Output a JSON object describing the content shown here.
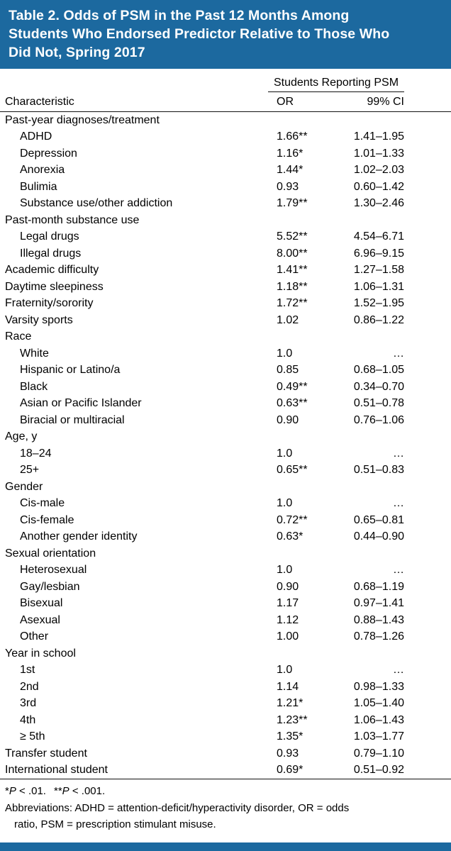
{
  "colors": {
    "header_bg": "#1c699f",
    "rule": "#111111",
    "text": "#000000"
  },
  "title_lines": [
    "Table 2. Odds of PSM in the Past 12 Months Among",
    "Students Who Endorsed Predictor Relative to Those Who",
    "Did Not, Spring 2017"
  ],
  "header": {
    "span": "Students Reporting PSM",
    "characteristic": "Characteristic",
    "or": "OR",
    "ci": "99% CI"
  },
  "rows": [
    {
      "label": "Past-year diagnoses/treatment",
      "indent": 0,
      "or": "",
      "ci": ""
    },
    {
      "label": "ADHD",
      "indent": 1,
      "or": "1.66**",
      "ci": "1.41–1.95"
    },
    {
      "label": "Depression",
      "indent": 1,
      "or": "1.16*",
      "ci": "1.01–1.33"
    },
    {
      "label": "Anorexia",
      "indent": 1,
      "or": "1.44*",
      "ci": "1.02–2.03"
    },
    {
      "label": "Bulimia",
      "indent": 1,
      "or": "0.93",
      "ci": "0.60–1.42"
    },
    {
      "label": "Substance use/other addiction",
      "indent": 1,
      "or": "1.79**",
      "ci": "1.30–2.46"
    },
    {
      "label": "Past-month substance use",
      "indent": 0,
      "or": "",
      "ci": ""
    },
    {
      "label": "Legal drugs",
      "indent": 1,
      "or": "5.52**",
      "ci": "4.54–6.71"
    },
    {
      "label": "Illegal drugs",
      "indent": 1,
      "or": "8.00**",
      "ci": "6.96–9.15"
    },
    {
      "label": "Academic difficulty",
      "indent": 0,
      "or": "1.41**",
      "ci": "1.27–1.58"
    },
    {
      "label": "Daytime sleepiness",
      "indent": 0,
      "or": "1.18**",
      "ci": "1.06–1.31"
    },
    {
      "label": "Fraternity/sorority",
      "indent": 0,
      "or": "1.72**",
      "ci": "1.52–1.95"
    },
    {
      "label": "Varsity sports",
      "indent": 0,
      "or": "1.02",
      "ci": "0.86–1.22"
    },
    {
      "label": "Race",
      "indent": 0,
      "or": "",
      "ci": ""
    },
    {
      "label": "White",
      "indent": 1,
      "or": "1.0",
      "ci": "…"
    },
    {
      "label": "Hispanic or Latino/a",
      "indent": 1,
      "or": "0.85",
      "ci": "0.68–1.05"
    },
    {
      "label": "Black",
      "indent": 1,
      "or": "0.49**",
      "ci": "0.34–0.70"
    },
    {
      "label": "Asian or Pacific Islander",
      "indent": 1,
      "or": "0.63**",
      "ci": "0.51–0.78"
    },
    {
      "label": "Biracial or multiracial",
      "indent": 1,
      "or": "0.90",
      "ci": "0.76–1.06"
    },
    {
      "label": "Age, y",
      "indent": 0,
      "or": "",
      "ci": ""
    },
    {
      "label": "18–24",
      "indent": 1,
      "or": "1.0",
      "ci": "…"
    },
    {
      "label": "25+",
      "indent": 1,
      "or": "0.65**",
      "ci": "0.51–0.83"
    },
    {
      "label": "Gender",
      "indent": 0,
      "or": "",
      "ci": ""
    },
    {
      "label": "Cis-male",
      "indent": 1,
      "or": "1.0",
      "ci": "…"
    },
    {
      "label": "Cis-female",
      "indent": 1,
      "or": "0.72**",
      "ci": "0.65–0.81"
    },
    {
      "label": "Another gender identity",
      "indent": 1,
      "or": "0.63*",
      "ci": "0.44–0.90"
    },
    {
      "label": "Sexual orientation",
      "indent": 0,
      "or": "",
      "ci": ""
    },
    {
      "label": "Heterosexual",
      "indent": 1,
      "or": "1.0",
      "ci": "…"
    },
    {
      "label": "Gay/lesbian",
      "indent": 1,
      "or": "0.90",
      "ci": "0.68–1.19"
    },
    {
      "label": "Bisexual",
      "indent": 1,
      "or": "1.17",
      "ci": "0.97–1.41"
    },
    {
      "label": "Asexual",
      "indent": 1,
      "or": "1.12",
      "ci": "0.88–1.43"
    },
    {
      "label": "Other",
      "indent": 1,
      "or": "1.00",
      "ci": "0.78–1.26"
    },
    {
      "label": "Year in school",
      "indent": 0,
      "or": "",
      "ci": ""
    },
    {
      "label": "1st",
      "indent": 1,
      "or": "1.0",
      "ci": "…"
    },
    {
      "label": "2nd",
      "indent": 1,
      "or": "1.14",
      "ci": "0.98–1.33"
    },
    {
      "label": "3rd",
      "indent": 1,
      "or": "1.21*",
      "ci": "1.05–1.40"
    },
    {
      "label": "4th",
      "indent": 1,
      "or": "1.23**",
      "ci": "1.06–1.43"
    },
    {
      "label": "≥ 5th",
      "indent": 1,
      "or": "1.35*",
      "ci": "1.03–1.77"
    },
    {
      "label": "Transfer student",
      "indent": 0,
      "or": "0.93",
      "ci": "0.79–1.10"
    },
    {
      "label": "International student",
      "indent": 0,
      "or": "0.69*",
      "ci": "0.51–0.92"
    }
  ],
  "footnotes": {
    "sig": {
      "s1": "*",
      "p1": "P",
      "v1": " < .01.",
      "s2": "**",
      "p2": "P",
      "v2": " < .001."
    },
    "abbr_line1": "Abbreviations: ADHD = attention-deficit/hyperactivity disorder, OR = odds",
    "abbr_line2": "ratio, PSM = prescription stimulant misuse."
  }
}
